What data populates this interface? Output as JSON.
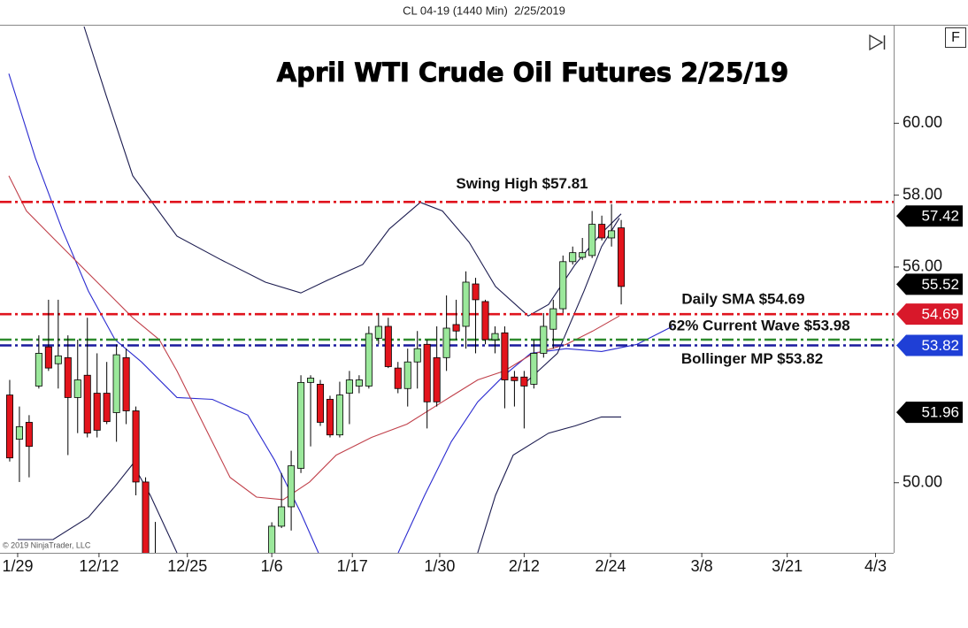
{
  "chart_data": {
    "type": "candlestick",
    "subtitle": "CL 04-19 (1440 Min)  2/25/2019",
    "title": "April WTI Crude Oil Futures 2/25/19",
    "copyright": "© 2019 NinjaTrader, LLC",
    "xlim": [
      -1.0,
      91.07
    ],
    "xticks": [
      {
        "value": 0.82,
        "label": "1/29"
      },
      {
        "value": 9.2,
        "label": "12/12"
      },
      {
        "value": 18.3,
        "label": "12/25"
      },
      {
        "value": 27,
        "label": "1/6"
      },
      {
        "value": 35.3,
        "label": "1/17"
      },
      {
        "value": 44.3,
        "label": "1/30"
      },
      {
        "value": 53,
        "label": "2/12"
      },
      {
        "value": 61.9,
        "label": "2/24"
      },
      {
        "value": 71.3,
        "label": "3/8"
      },
      {
        "value": 80.1,
        "label": "3/21"
      },
      {
        "value": 89.2,
        "label": "4/3"
      }
    ],
    "ylim": [
      48.05,
      62.74
    ],
    "yticks": [
      {
        "value": 50,
        "label": "50.00"
      },
      {
        "value": 56,
        "label": "56.00"
      },
      {
        "value": 58,
        "label": "58.00"
      },
      {
        "value": 60,
        "label": "60.00"
      }
    ],
    "up_color": "#9be89b",
    "down_color": "#e3141c",
    "candles": {
      "open": [
        52.44,
        51.21,
        51.68,
        52.69,
        53.78,
        53.31,
        53.48,
        52.37,
        52.99,
        52.49,
        52.49,
        51.95,
        53.48,
        52.0,
        50.02,
        47.6,
        null,
        null,
        null,
        null,
        null,
        null,
        null,
        null,
        null,
        null,
        null,
        47.9,
        48.79,
        49.33,
        50.4,
        52.79,
        52.74,
        52.32,
        51.33,
        52.49,
        52.69,
        52.69,
        54.02,
        54.35,
        53.19,
        52.62,
        53.36,
        53.85,
        53.48,
        53.48,
        54.4,
        54.35,
        55.53,
        55.04,
        53.98,
        54.17,
        52.94,
        52.94,
        52.74,
        53.6,
        54.27,
        54.84,
        56.15,
        56.27,
        56.32,
        57.19,
        56.81,
        57.09
      ],
      "high": [
        52.86,
        52.12,
        51.88,
        54.1,
        55.09,
        55.09,
        54.1,
        53.98,
        54.59,
        53.6,
        53.36,
        53.85,
        53.73,
        52.12,
        50.15,
        48.91,
        null,
        null,
        null,
        null,
        null,
        null,
        null,
        null,
        null,
        null,
        null,
        48.9,
        50.27,
        50.89,
        52.99,
        52.99,
        52.86,
        52.42,
        52.81,
        53.11,
        52.99,
        54.35,
        54.72,
        54.59,
        53.36,
        53.73,
        54.22,
        53.98,
        54.35,
        55.21,
        55.09,
        55.88,
        55.7,
        55.09,
        54.35,
        54.35,
        53.11,
        53.11,
        53.98,
        54.72,
        55.09,
        56.32,
        56.57,
        56.81,
        57.56,
        57.43,
        57.75,
        57.31
      ],
      "low": [
        50.59,
        50.02,
        50.15,
        52.62,
        53.11,
        52.62,
        50.77,
        51.38,
        51.26,
        51.26,
        51.63,
        51.14,
        51.63,
        49.65,
        47.5,
        47.0,
        null,
        null,
        null,
        null,
        null,
        null,
        null,
        null,
        null,
        null,
        null,
        47.7,
        48.74,
        48.67,
        50.27,
        51.01,
        51.58,
        51.26,
        51.26,
        51.63,
        52.49,
        52.62,
        53.85,
        53.19,
        52.49,
        52.12,
        52.62,
        51.51,
        52.12,
        53.11,
        53.98,
        53.73,
        53.6,
        53.85,
        53.6,
        52.07,
        52.12,
        51.51,
        52.62,
        53.48,
        53.73,
        54.72,
        56.07,
        56.2,
        56.25,
        56.74,
        56.57,
        54.96
      ],
      "close": [
        50.69,
        51.56,
        51.01,
        53.6,
        53.19,
        53.53,
        52.37,
        52.86,
        51.38,
        51.46,
        51.7,
        53.56,
        52.0,
        50.02,
        47.8,
        47.3,
        null,
        null,
        null,
        null,
        null,
        null,
        null,
        null,
        null,
        null,
        null,
        48.79,
        49.33,
        50.47,
        52.79,
        52.91,
        51.68,
        51.33,
        52.44,
        52.86,
        52.86,
        54.15,
        54.35,
        53.23,
        52.62,
        53.36,
        53.73,
        52.25,
        52.25,
        54.3,
        54.22,
        55.58,
        55.09,
        53.98,
        54.15,
        52.86,
        52.84,
        52.69,
        53.6,
        54.35,
        54.84,
        56.15,
        56.4,
        56.4,
        57.19,
        56.81,
        57.01,
        55.46
      ]
    },
    "indicators": [
      {
        "color": "#1c1c50",
        "x": [
          7.66,
          9.94,
          12.67,
          17.23,
          21.79,
          26.34,
          29.99,
          32.73,
          36.37,
          39.11,
          42.3,
          44.58,
          47.33,
          50.05,
          53.42,
          55.52,
          58.25,
          60.96,
          62.99
        ],
        "values": [
          62.69,
          60.77,
          58.54,
          56.86,
          56.2,
          55.58,
          55.28,
          55.63,
          56.07,
          57.06,
          57.8,
          57.56,
          56.69,
          55.46,
          54.64,
          54.96,
          56.07,
          56.94,
          57.48
        ]
      },
      {
        "color": "#1c1c50",
        "x": [
          0.82,
          4.47,
          8.11,
          10.85,
          12.67,
          14.49,
          17.23
        ],
        "values": [
          48.42,
          48.42,
          49.04,
          49.9,
          50.52,
          49.65,
          48.05
        ]
      },
      {
        "color": "#1c1c50",
        "x": [
          48.22,
          50.05,
          51.87,
          55.52,
          58.25,
          60.96,
          62.99
        ],
        "values": [
          48.05,
          49.65,
          50.77,
          51.38,
          51.58,
          51.83,
          51.83
        ]
      },
      {
        "color": "#2b2bd0",
        "x": [
          -0.09,
          2.64,
          5.38,
          8.11,
          10.85,
          13.58,
          17.23,
          20.88,
          24.52,
          27.26,
          29.99,
          31.81
        ],
        "values": [
          61.38,
          59.04,
          57.06,
          55.33,
          53.98,
          53.36,
          52.37,
          52.32,
          51.88,
          50.64,
          49.16,
          48.05
        ]
      },
      {
        "color": "#2b2bd0",
        "x": [
          40.02,
          42.75,
          45.49,
          48.22,
          50.96,
          53.69,
          57.34,
          60.98,
          64.63,
          68.28
        ],
        "values": [
          48.05,
          49.65,
          51.14,
          52.25,
          52.99,
          53.6,
          53.73,
          53.65,
          53.85,
          54.35
        ]
      },
      {
        "color": "#c0404a",
        "x": [
          -0.09,
          1.73,
          4.47,
          7.2,
          9.94,
          12.67,
          15.41,
          17.23,
          19.96,
          22.7,
          25.43,
          28.17,
          30.9,
          33.64,
          37.28,
          40.93,
          44.58,
          48.22,
          50.96,
          53.69,
          57.34,
          60.07,
          62.81
        ],
        "values": [
          58.54,
          57.56,
          56.81,
          56.07,
          55.33,
          54.59,
          53.98,
          53.11,
          51.63,
          50.15,
          49.6,
          49.53,
          50.02,
          50.77,
          51.26,
          51.63,
          52.25,
          52.86,
          53.11,
          53.56,
          53.85,
          54.22,
          54.64
        ]
      },
      {
        "color": "#1c1c50",
        "x": [
          53.24,
          56.43,
          59.16,
          60.98,
          62.81
        ],
        "values": [
          52.81,
          53.6,
          55.33,
          56.57,
          57.36
        ]
      }
    ],
    "levels": [
      {
        "value": 57.81,
        "label": "Swing High $57.81",
        "color": "#e0141e"
      },
      {
        "value": 54.69,
        "label": "Daily SMA $54.69",
        "color": "#e0141e"
      },
      {
        "value": 53.98,
        "label": "62% Current Wave $53.98",
        "color": "#2e8b2e"
      },
      {
        "value": 53.82,
        "label": "Bollinger MP $53.82",
        "color": "#1a1a9e"
      }
    ],
    "price_markers": [
      {
        "value": 57.42,
        "color": "#000000"
      },
      {
        "value": 55.52,
        "color": "#000000"
      },
      {
        "value": 54.69,
        "color": "#d8182a"
      },
      {
        "value": 53.82,
        "color": "#1f3fd6"
      },
      {
        "value": 51.96,
        "color": "#000000"
      }
    ]
  },
  "toolbar": {
    "button": "F"
  }
}
